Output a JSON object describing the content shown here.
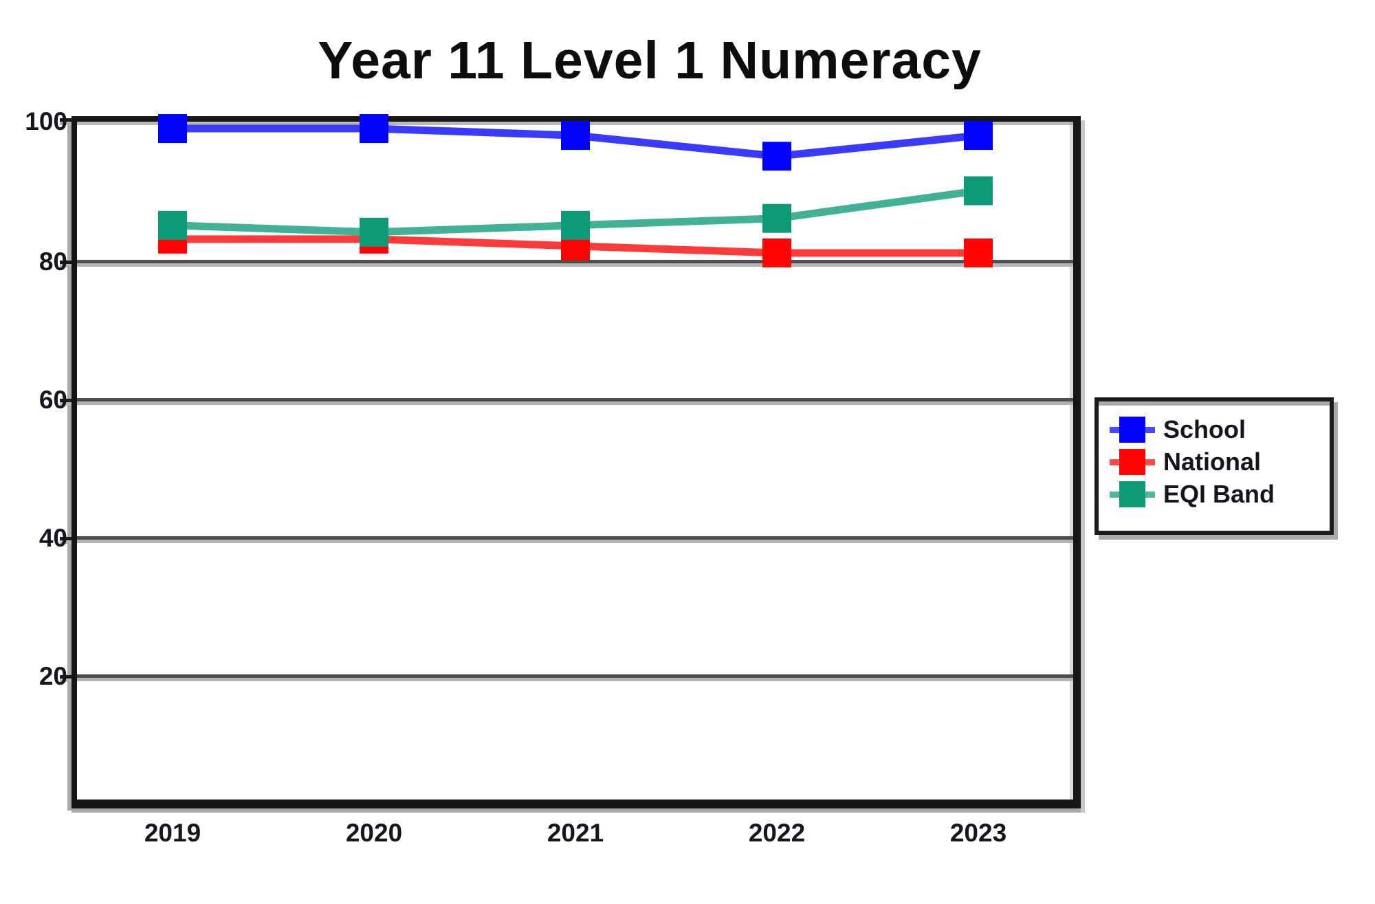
{
  "title": "Year 11 Level 1 Numeracy",
  "chart_data": {
    "type": "line",
    "title": "Year 11 Level 1 Numeracy",
    "categories": [
      "2019",
      "2020",
      "2021",
      "2022",
      "2023"
    ],
    "series": [
      {
        "name": "School",
        "color": "#0202fe",
        "values": [
          99,
          99,
          98,
          95,
          98
        ]
      },
      {
        "name": "National",
        "color": "#fe0404",
        "values": [
          83,
          83,
          82,
          81,
          81
        ]
      },
      {
        "name": "EQI Band",
        "color": "#0d9b77",
        "values": [
          85,
          84,
          85,
          86,
          90
        ]
      }
    ],
    "xlabel": "",
    "ylabel": "",
    "ylim": [
      0,
      100
    ],
    "yticks": [
      100,
      80,
      60,
      40,
      20
    ],
    "grid": true,
    "legend_position": "right-middle",
    "marker": "square"
  },
  "axes": {
    "y_ticks": [
      "100",
      "80",
      "60",
      "40",
      "20"
    ],
    "x_ticks": [
      "2019",
      "2020",
      "2021",
      "2022",
      "2023"
    ]
  },
  "legend": {
    "items": [
      "School",
      "National",
      "EQI Band"
    ]
  },
  "colors": {
    "grid_dark": "#4d4d4d",
    "grid_light": "#b4b4b4",
    "frame": "#161616",
    "text": "#15151f"
  }
}
